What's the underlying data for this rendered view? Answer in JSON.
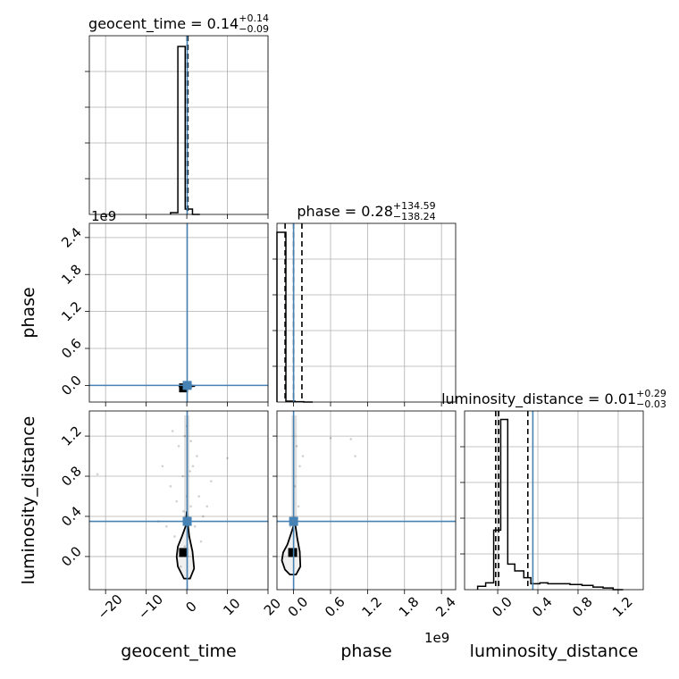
{
  "chart_data": {
    "type": "corner",
    "parameters": [
      "geocent_time",
      "phase",
      "luminosity_distance"
    ],
    "diagonal_titles": [
      {
        "param": "geocent_time",
        "prefix": "geocent_time = 0.14",
        "plus": "+0.14",
        "minus": "−0.09"
      },
      {
        "param": "phase",
        "prefix": "phase = 0.28",
        "plus": "+134.59",
        "minus": "−138.24"
      },
      {
        "param": "luminosity_distance",
        "prefix": "luminosity_distance = 0.01",
        "plus": "+0.29",
        "minus": "−0.03"
      }
    ],
    "axes": {
      "geocent_time": {
        "range": [
          -24,
          20
        ],
        "ticks": [
          -20,
          -10,
          0,
          10,
          20
        ],
        "tick_labels": [
          "−20",
          "−10",
          "0",
          "10",
          "20"
        ]
      },
      "phase": {
        "range": [
          -270000000,
          2630000000
        ],
        "ticks": [
          0,
          600000000,
          1200000000,
          1800000000,
          2400000000
        ],
        "tick_labels": [
          "0.0",
          "0.6",
          "1.2",
          "1.8",
          "2.4"
        ],
        "offset_text": "1e9"
      },
      "luminosity_distance": {
        "range": [
          -0.33,
          1.45
        ],
        "ticks": [
          0,
          0.4,
          0.8,
          1.2
        ],
        "tick_labels": [
          "0.0",
          "0.4",
          "0.8",
          "1.2"
        ]
      }
    },
    "truths": {
      "geocent_time": 0.1,
      "phase": 0,
      "luminosity_distance": 0.35
    },
    "quantile_lines": {
      "geocent_time": [
        0.05,
        0.14,
        0.28
      ],
      "phase": [
        -138000000,
        280000,
        135000000
      ],
      "luminosity_distance": [
        -0.02,
        0.01,
        0.3
      ]
    },
    "histograms": {
      "geocent_time": {
        "edges": [
          -4,
          -2.2,
          -0.4,
          1.4,
          3.2
        ],
        "counts": [
          0.01,
          0.94,
          0.03,
          0
        ],
        "ymax": 1.0
      },
      "phase": {
        "edges": [
          -270000000,
          -125000000,
          20000000,
          165000000,
          310000000
        ],
        "counts": [
          0.95,
          0.005,
          0.002,
          0
        ],
        "ymax": 1.0
      },
      "luminosity_distance": {
        "edges": [
          -0.2,
          -0.12,
          -0.04,
          0.03,
          0.1,
          0.17,
          0.26,
          0.33,
          0.42,
          0.5,
          0.6,
          0.72,
          0.84,
          0.95,
          1.05,
          1.15,
          1.25
        ],
        "counts": [
          0.02,
          0.04,
          0.35,
          1.0,
          0.15,
          0.11,
          0.07,
          0.035,
          0.04,
          0.035,
          0.035,
          0.03,
          0.025,
          0.015,
          0.01,
          0
        ],
        "ymax": 1.05
      }
    },
    "scatter_samples": {
      "geocent_time_vs_luminosity_distance": [
        [
          -0.5,
          0.1
        ],
        [
          1,
          0.5
        ],
        [
          -1,
          0.8
        ],
        [
          2,
          0.3
        ],
        [
          -2,
          1.1
        ],
        [
          0,
          1.3
        ],
        [
          3,
          0.6
        ],
        [
          -3,
          0.2
        ],
        [
          1.5,
          0.9
        ],
        [
          -0.5,
          1.2
        ],
        [
          4,
          0.4
        ],
        [
          -4,
          0.7
        ],
        [
          0.5,
          0.2
        ],
        [
          -1.5,
          -0.1
        ],
        [
          2.5,
          1.0
        ],
        [
          5,
          0.5
        ],
        [
          -5,
          0.3
        ],
        [
          0,
          0.6
        ],
        [
          1,
          1.15
        ],
        [
          -2.5,
          0.55
        ],
        [
          -22,
          0.82
        ],
        [
          10,
          0.98
        ],
        [
          -7,
          0.35
        ],
        [
          6,
          0.75
        ],
        [
          -6,
          0.9
        ],
        [
          3.5,
          0.15
        ],
        [
          -3.5,
          1.25
        ],
        [
          0.8,
          0.85
        ],
        [
          -0.8,
          0.45
        ]
      ],
      "phase_vs_luminosity_distance": [
        [
          50000000,
          1.1
        ],
        [
          100000000,
          0.9
        ],
        [
          0,
          1.2
        ],
        [
          150000000,
          1.0
        ],
        [
          600000000,
          1.18
        ],
        [
          930000000,
          1.17
        ],
        [
          1000000000,
          1.0
        ],
        [
          20000000,
          0.7
        ],
        [
          80000000,
          0.5
        ],
        [
          -50000000,
          0.3
        ]
      ]
    },
    "contours": {
      "geocent_time_vs_luminosity_distance": [
        [
          0,
          0.45
        ],
        [
          -0.3,
          0.3
        ],
        [
          -1.2,
          0.2
        ],
        [
          -2.2,
          0.1
        ],
        [
          -2.5,
          0.0
        ],
        [
          -2.2,
          -0.1
        ],
        [
          -0.7,
          -0.22
        ],
        [
          0.8,
          -0.22
        ],
        [
          1.8,
          -0.12
        ],
        [
          1.4,
          0.05
        ],
        [
          0.6,
          0.2
        ],
        [
          0.2,
          0.35
        ]
      ],
      "phase_vs_luminosity_distance": [
        [
          20000000,
          0.35
        ],
        [
          -30000000,
          0.25
        ],
        [
          -100000000,
          0.12
        ],
        [
          -170000000,
          0.04
        ],
        [
          -190000000,
          -0.04
        ],
        [
          -140000000,
          -0.13
        ],
        [
          -60000000,
          -0.18
        ],
        [
          40000000,
          -0.18
        ],
        [
          110000000,
          -0.1
        ],
        [
          100000000,
          0.05
        ],
        [
          60000000,
          0.18
        ]
      ],
      "geocent_time_vs_phase": [
        [
          -2,
          -15000000
        ],
        [
          0,
          20000000
        ],
        [
          2,
          -10000000
        ],
        [
          0,
          -25000000
        ]
      ]
    },
    "density_peaks": {
      "geocent_time_vs_phase": [
        -0.8,
        -40000000
      ],
      "geocent_time_vs_luminosity_distance": [
        -0.8,
        0.04
      ],
      "phase_vs_luminosity_distance": [
        -15000000,
        0.04
      ]
    }
  }
}
